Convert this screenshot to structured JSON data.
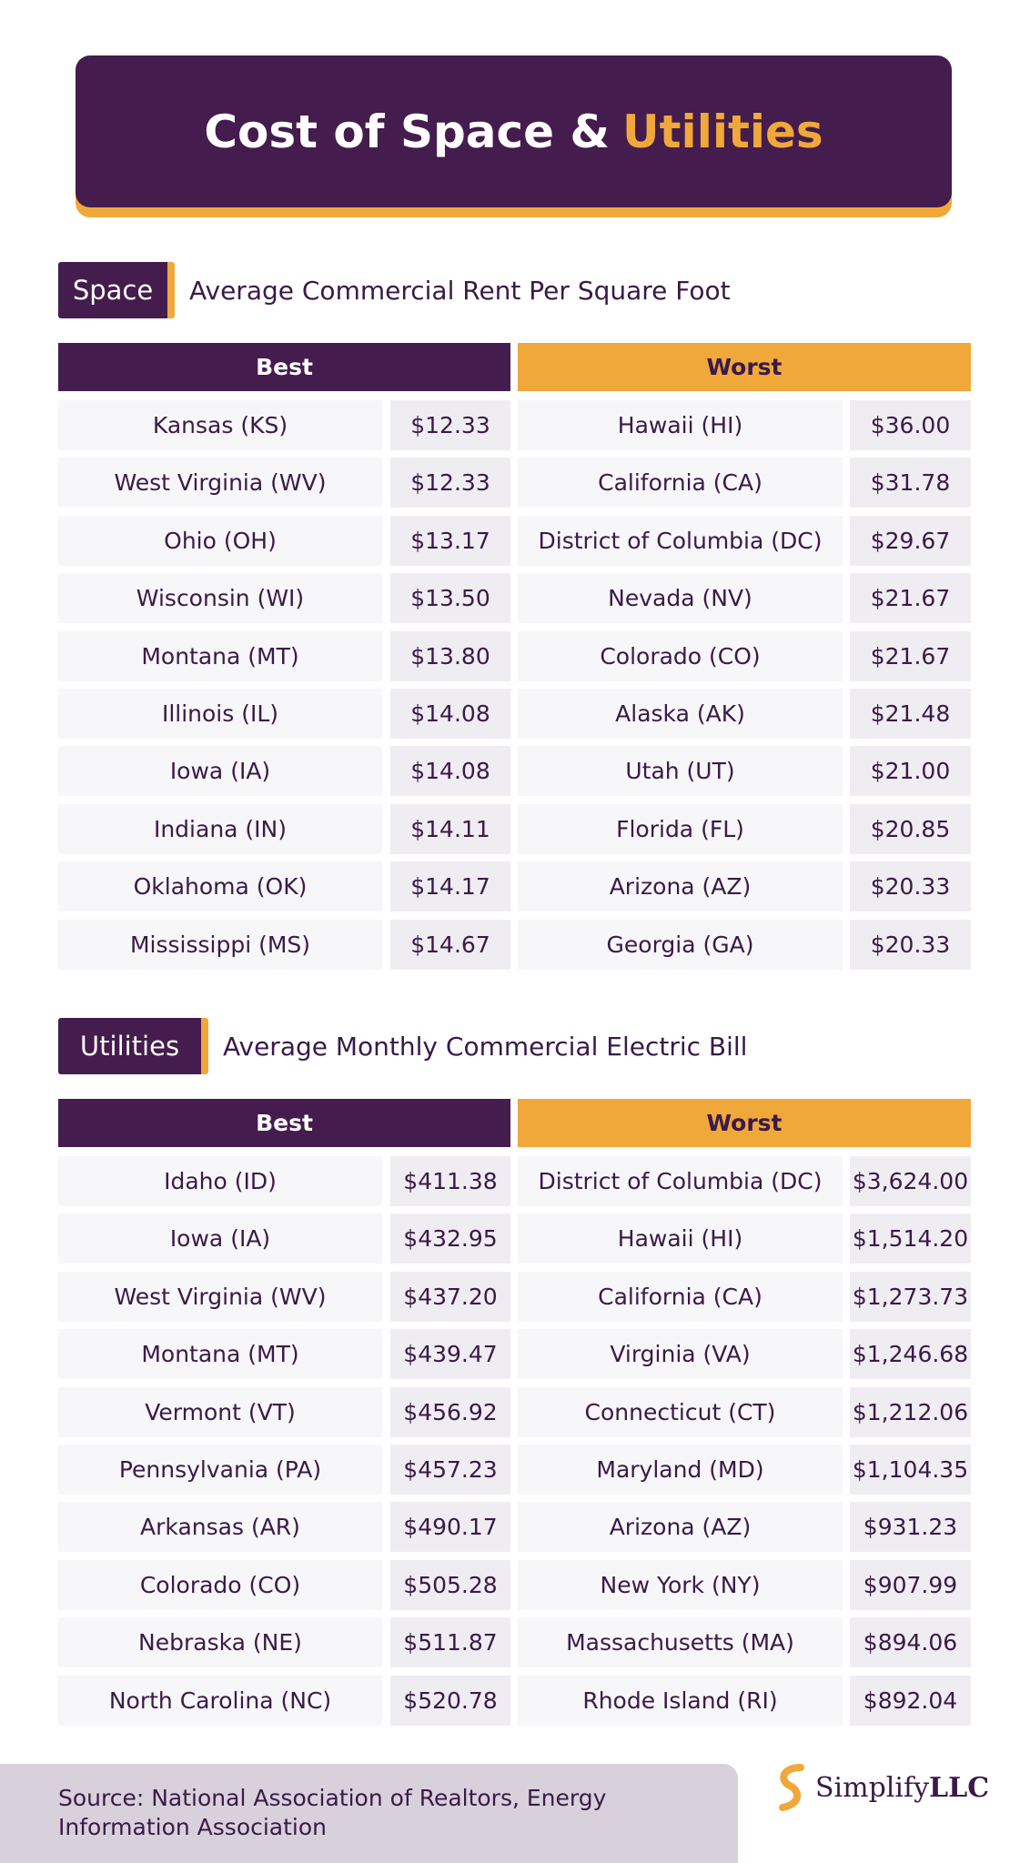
{
  "header": {
    "title": "Cost of Space &",
    "title_highlight": "Utilities"
  },
  "sections": [
    {
      "tag": "Space",
      "subtitle": "Average Commercial Rent Per Square Foot",
      "best_header": "Best",
      "worst_header": "Worst",
      "best": [
        [
          "Kansas (KS)",
          "$12.33"
        ],
        [
          "West Virginia (WV)",
          "$12.33"
        ],
        [
          "Ohio (OH)",
          "$13.17"
        ],
        [
          "Wisconsin (WI)",
          "$13.50"
        ],
        [
          "Montana (MT)",
          "$13.80"
        ],
        [
          "Illinois (IL)",
          "$14.08"
        ],
        [
          "Iowa (IA)",
          "$14.08"
        ],
        [
          "Indiana (IN)",
          "$14.11"
        ],
        [
          "Oklahoma (OK)",
          "$14.17"
        ],
        [
          "Mississippi (MS)",
          "$14.67"
        ]
      ],
      "worst": [
        [
          "Hawaii (HI)",
          "$36.00"
        ],
        [
          "California (CA)",
          "$31.78"
        ],
        [
          "District of Columbia (DC)",
          "$29.67"
        ],
        [
          "Nevada (NV)",
          "$21.67"
        ],
        [
          "Colorado (CO)",
          "$21.67"
        ],
        [
          "Alaska (AK)",
          "$21.48"
        ],
        [
          "Utah (UT)",
          "$21.00"
        ],
        [
          "Florida (FL)",
          "$20.85"
        ],
        [
          "Arizona (AZ)",
          "$20.33"
        ],
        [
          "Georgia (GA)",
          "$20.33"
        ]
      ]
    },
    {
      "tag": "Utilities",
      "subtitle": "Average Monthly Commercial Electric Bill",
      "best_header": "Best",
      "worst_header": "Worst",
      "best": [
        [
          "Idaho (ID)",
          "$411.38"
        ],
        [
          "Iowa (IA)",
          "$432.95"
        ],
        [
          "West Virginia (WV)",
          "$437.20"
        ],
        [
          "Montana (MT)",
          "$439.47"
        ],
        [
          "Vermont (VT)",
          "$456.92"
        ],
        [
          "Pennsylvania (PA)",
          "$457.23"
        ],
        [
          "Arkansas (AR)",
          "$490.17"
        ],
        [
          "Colorado (CO)",
          "$505.28"
        ],
        [
          "Nebraska (NE)",
          "$511.87"
        ],
        [
          "North Carolina (NC)",
          "$520.78"
        ]
      ],
      "worst": [
        [
          "District of Columbia (DC)",
          "$3,624.00"
        ],
        [
          "Hawaii (HI)",
          "$1,514.20"
        ],
        [
          "California (CA)",
          "$1,273.73"
        ],
        [
          "Virginia (VA)",
          "$1,246.68"
        ],
        [
          "Connecticut (CT)",
          "$1,212.06"
        ],
        [
          "Maryland (MD)",
          "$1,104.35"
        ],
        [
          "Arizona (AZ)",
          "$931.23"
        ],
        [
          "New York (NY)",
          "$907.99"
        ],
        [
          "Massachusetts (MA)",
          "$894.06"
        ],
        [
          "Rhode Island (RI)",
          "$892.04"
        ]
      ]
    }
  ],
  "footer": {
    "source": "Source: National Association of Realtors, Energy Information Association",
    "logo_main": "Simplify",
    "logo_suffix": "LLC"
  }
}
